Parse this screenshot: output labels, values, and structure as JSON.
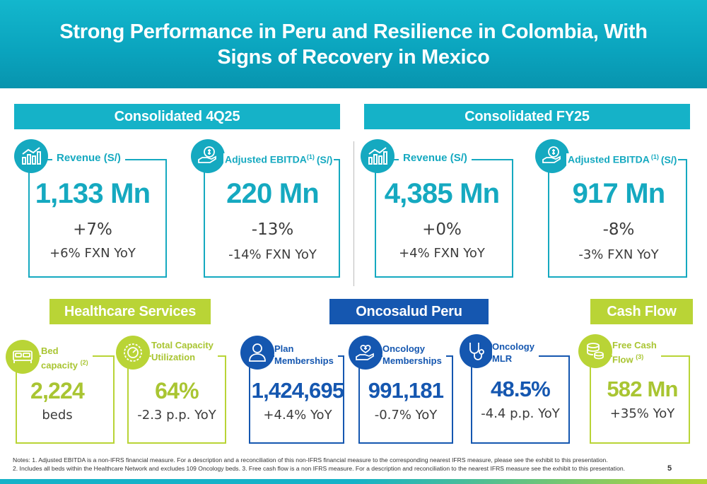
{
  "title": "Strong Performance in Peru and Resilience in Colombia, With Signs of Recovery in Mexico",
  "sections": {
    "consolidated_4q25": "Consolidated 4Q25",
    "consolidated_fy25": "Consolidated FY25",
    "healthcare_services": "Healthcare Services",
    "oncosalud_peru": "Oncosalud Peru",
    "cash_flow": "Cash Flow"
  },
  "q4": {
    "revenue": {
      "label": "Revenue (S/)",
      "value": "1,133 Mn",
      "change": "+7%",
      "fxn": "+6% FXN YoY",
      "icon": "bar-chart-icon"
    },
    "ebitda": {
      "label_main": "Adjusted EBITDA",
      "label_sup": "(1)",
      "label_tail": "(S/)",
      "value": "220 Mn",
      "change": "-13%",
      "fxn": "-14% FXN YoY",
      "icon": "money-hand-icon"
    }
  },
  "fy": {
    "revenue": {
      "label": "Revenue (S/)",
      "value": "4,385 Mn",
      "change": "+0%",
      "fxn": "+4% FXN YoY",
      "icon": "bar-chart-icon"
    },
    "ebitda": {
      "label_main": "Adjusted EBITDA",
      "label_sup": "(1)",
      "label_tail": "(S/)",
      "value": "917 Mn",
      "change": "-8%",
      "fxn": "-3% FXN YoY",
      "icon": "money-hand-icon"
    }
  },
  "healthcare": {
    "beds": {
      "label_line1": "Bed",
      "label_line2": "capacity",
      "label_sup": "(2)",
      "value": "2,224",
      "sub": "beds",
      "icon": "bed-icon"
    },
    "utilization": {
      "label_line1": "Total Capacity",
      "label_line2": "Utilization",
      "value": "64%",
      "sub": "-2.3 p.p. YoY",
      "icon": "gauge-icon"
    }
  },
  "oncosalud": {
    "plan": {
      "label_line1": "Plan",
      "label_line2": "Memberships",
      "value": "1,424,695",
      "sub": "+4.4% YoY",
      "icon": "person-icon"
    },
    "oncology": {
      "label_line1": "Oncology",
      "label_line2": "Memberships",
      "value": "991,181",
      "sub": "-0.7% YoY",
      "icon": "heart-hand-icon"
    },
    "mlr": {
      "label_line1": "Oncology",
      "label_line2": "MLR",
      "value": "48.5%",
      "sub": "-4.4 p.p. YoY",
      "icon": "stethoscope-icon"
    }
  },
  "cashflow": {
    "label_line1": "Free Cash",
    "label_line2": "Flow",
    "label_sup": "(3)",
    "value": "582 Mn",
    "sub": "+35% YoY",
    "icon": "coins-icon"
  },
  "notes": {
    "line1": "Notes: 1. Adjusted EBITDA is a non-IFRS financial measure. For a description and a reconciliation of this non-IFRS financial measure to the corresponding nearest IFRS measure, please see the exhibit to this presentation.",
    "line2": "2. Includes all beds within the Healthcare Network and excludes 109 Oncology beds. 3. Free cash flow is a non IFRS measure. For a description and reconciliation to the nearest IFRS measure see the exhibit to this presentation."
  },
  "page_number": "5",
  "colors": {
    "teal": "#15a9c0",
    "green": "#b9d436",
    "navy": "#1557b0"
  }
}
